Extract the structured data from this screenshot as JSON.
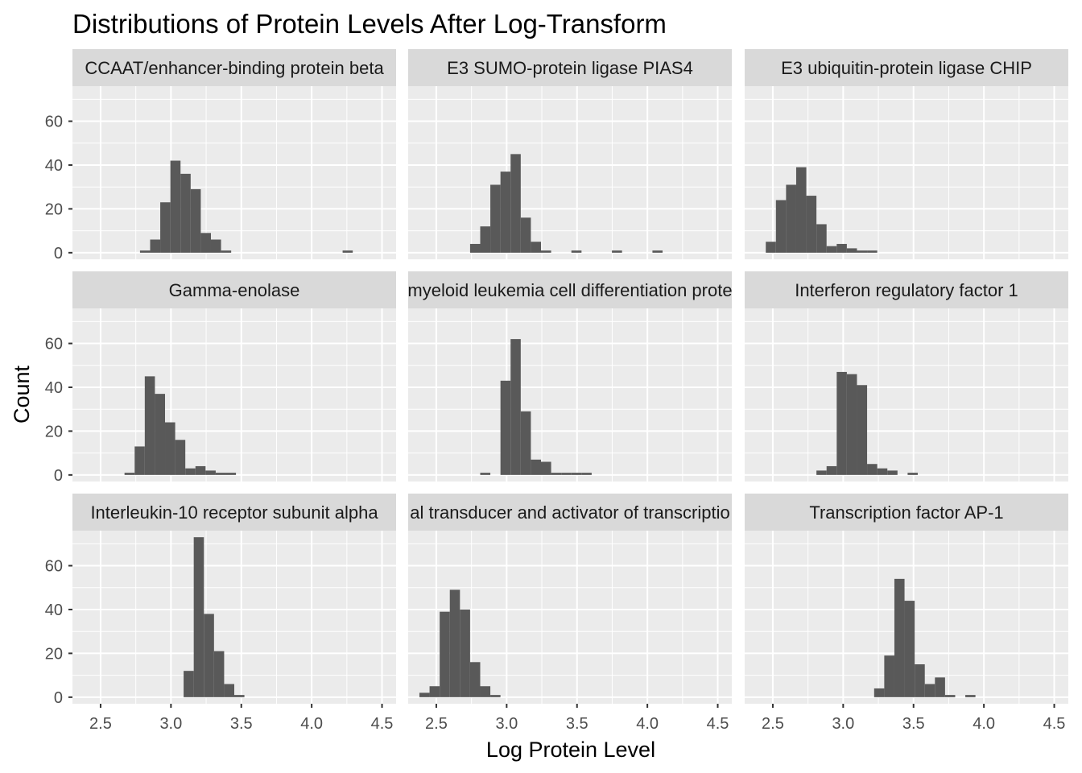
{
  "chart_data": {
    "type": "bar",
    "title": "Distributions of Protein Levels After Log-Transform",
    "xlabel": "Log Protein Level",
    "ylabel": "Count",
    "xlim": [
      2.3,
      4.6
    ],
    "ylim": [
      -3,
      76
    ],
    "x_ticks": [
      2.5,
      3.0,
      3.5,
      4.0,
      4.5
    ],
    "x_tick_labels": [
      "2.5",
      "3.0",
      "3.5",
      "4.0",
      "4.5"
    ],
    "y_ticks": [
      0,
      20,
      40,
      60
    ],
    "y_tick_labels": [
      "0",
      "20",
      "40",
      "60"
    ],
    "bin_width": 0.072,
    "grid": true,
    "bar_color": "#595959",
    "panel_color": "#ebebeb",
    "strip_color": "#d9d9d9",
    "facets": [
      {
        "name": "CCAAT/enhancer-binding protein beta",
        "start": 2.78,
        "counts": [
          1,
          6,
          23,
          42,
          36,
          29,
          9,
          6,
          1,
          0,
          0,
          0,
          0,
          0,
          0,
          0,
          0,
          0,
          0,
          0,
          1
        ]
      },
      {
        "name": "E3 SUMO-protein ligase PIAS4",
        "start": 2.74,
        "counts": [
          4,
          12,
          31,
          37,
          45,
          16,
          5,
          1,
          0,
          0,
          1,
          0,
          0,
          0,
          1,
          0,
          0,
          0,
          1
        ]
      },
      {
        "name": "E3 ubiquitin-protein ligase CHIP",
        "start": 2.45,
        "counts": [
          5,
          24,
          31,
          39,
          26,
          13,
          3,
          4,
          2,
          1,
          1,
          0,
          0,
          0,
          0,
          0,
          0,
          0,
          0,
          0,
          0,
          0,
          0,
          0,
          0,
          0,
          0,
          0,
          0,
          0,
          0,
          0,
          0,
          0,
          0,
          1
        ]
      },
      {
        "name": "Gamma-enolase",
        "start": 2.67,
        "counts": [
          1,
          13,
          45,
          37,
          24,
          16,
          3,
          4,
          2,
          1,
          1
        ]
      },
      {
        "name": "myeloid leukemia cell differentiation prote",
        "start": 2.74,
        "counts": [
          0,
          1,
          0,
          43,
          62,
          29,
          7,
          6,
          1,
          1,
          1,
          1
        ]
      },
      {
        "name": "Interferon regulatory factor 1",
        "start": 2.81,
        "counts": [
          2,
          4,
          47,
          46,
          41,
          5,
          3,
          2,
          0,
          1
        ]
      },
      {
        "name": "Interleukin-10 receptor subunit alpha",
        "start": 3.09,
        "counts": [
          12,
          73,
          38,
          21,
          6,
          1
        ]
      },
      {
        "name": "al transducer and activator of transcriptio",
        "start": 2.38,
        "counts": [
          2,
          5,
          39,
          49,
          40,
          16,
          5,
          1
        ]
      },
      {
        "name": "Transcription factor AP-1",
        "start": 3.22,
        "counts": [
          4,
          19,
          54,
          44,
          15,
          6,
          9,
          1,
          0,
          1
        ]
      }
    ]
  }
}
